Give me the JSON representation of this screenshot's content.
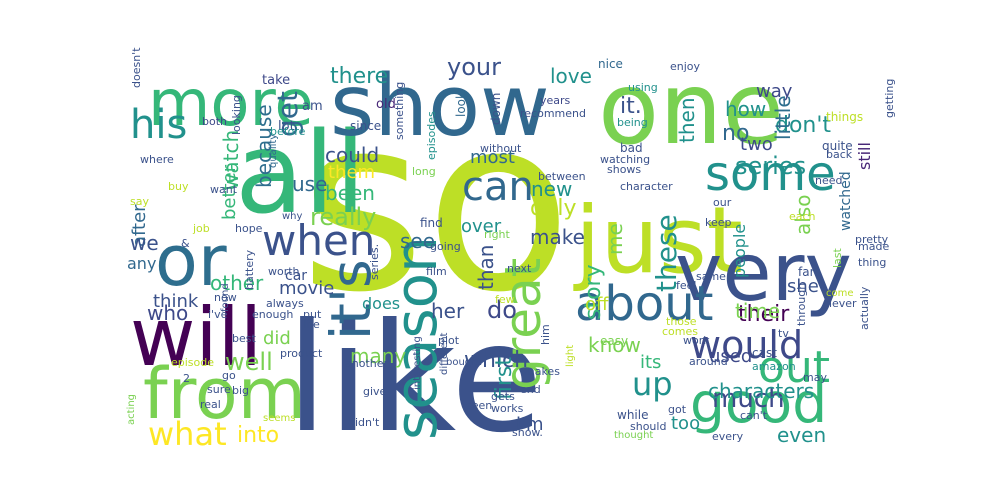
{
  "words": [
    {
      "text": "so",
      "color": "#bddf26"
    },
    {
      "text": "like",
      "color": "#3b528b"
    },
    {
      "text": "one",
      "color": "#7ad151"
    },
    {
      "text": "all",
      "color": "#35b779"
    },
    {
      "text": "just",
      "color": "#bddf26"
    },
    {
      "text": "show",
      "color": "#31688e"
    },
    {
      "text": "very",
      "color": "#3b528b"
    },
    {
      "text": "will",
      "color": "#440154"
    },
    {
      "text": "from",
      "color": "#7ad151"
    },
    {
      "text": "more",
      "color": "#35b779"
    },
    {
      "text": "or",
      "color": "#2e6e8e"
    },
    {
      "text": "season",
      "color": "#21918c"
    },
    {
      "text": "good",
      "color": "#35b779"
    },
    {
      "text": "it's",
      "color": "#31688e"
    },
    {
      "text": "about",
      "color": "#31688e"
    },
    {
      "text": "great",
      "color": "#7ad151"
    },
    {
      "text": "some",
      "color": "#21918c"
    },
    {
      "text": "out",
      "color": "#35b779"
    },
    {
      "text": "when",
      "color": "#3b528b"
    },
    {
      "text": "would",
      "color": "#3e4989"
    },
    {
      "text": "his",
      "color": "#21918c"
    },
    {
      "text": "can",
      "color": "#31688e"
    },
    {
      "text": "what",
      "color": "#fde725"
    },
    {
      "text": "up",
      "color": "#21918c"
    },
    {
      "text": "these",
      "color": "#21918c"
    },
    {
      "text": "there",
      "color": "#21918c"
    },
    {
      "text": "your",
      "color": "#3b528b"
    },
    {
      "text": "well",
      "color": "#7ad151"
    },
    {
      "text": "much",
      "color": "#3e4989"
    },
    {
      "text": "series",
      "color": "#21918c"
    },
    {
      "text": "really",
      "color": "#7ad151"
    },
    {
      "text": "love",
      "color": "#21918c"
    },
    {
      "text": "don't",
      "color": "#21918c"
    },
    {
      "text": "which",
      "color": "#3b528b"
    },
    {
      "text": "only",
      "color": "#bddf26"
    },
    {
      "text": "first",
      "color": "#21918c"
    },
    {
      "text": "story",
      "color": "#35b779"
    },
    {
      "text": "their",
      "color": "#440154"
    },
    {
      "text": "into",
      "color": "#fde725"
    },
    {
      "text": "even",
      "color": "#21918c"
    },
    {
      "text": "because",
      "color": "#2e6e8e"
    },
    {
      "text": "get",
      "color": "#31688e"
    },
    {
      "text": "it.",
      "color": "#3b528b"
    },
    {
      "text": "how",
      "color": "#21918c"
    },
    {
      "text": "no",
      "color": "#31688e"
    },
    {
      "text": "way",
      "color": "#3e4989"
    },
    {
      "text": "little",
      "color": "#2e6e8e"
    },
    {
      "text": "time",
      "color": "#7ad151"
    },
    {
      "text": "then",
      "color": "#21918c"
    },
    {
      "text": "two",
      "color": "#3e4989"
    },
    {
      "text": "also",
      "color": "#7ad151"
    },
    {
      "text": "watch",
      "color": "#35b779"
    },
    {
      "text": "use",
      "color": "#31688e"
    },
    {
      "text": "them",
      "color": "#fde725"
    },
    {
      "text": "could",
      "color": "#3b528b"
    },
    {
      "text": "been",
      "color": "#35b779"
    },
    {
      "text": "most",
      "color": "#31688e"
    },
    {
      "text": "new",
      "color": "#21918c"
    },
    {
      "text": "make",
      "color": "#3b528b"
    },
    {
      "text": "see",
      "color": "#31688e"
    },
    {
      "text": "than",
      "color": "#3b528b"
    },
    {
      "text": "over",
      "color": "#21918c"
    },
    {
      "text": "me",
      "color": "#7ad151"
    },
    {
      "text": "her",
      "color": "#3b528b"
    },
    {
      "text": "do",
      "color": "#3e4989"
    },
    {
      "text": "know",
      "color": "#7ad151"
    },
    {
      "text": "off",
      "color": "#bddf26"
    },
    {
      "text": "its",
      "color": "#35b779"
    },
    {
      "text": "too",
      "color": "#21918c"
    },
    {
      "text": "i'm",
      "color": "#3b528b"
    },
    {
      "text": "used",
      "color": "#3e4989"
    },
    {
      "text": "characters",
      "color": "#21918c"
    },
    {
      "text": "she",
      "color": "#3b528b"
    },
    {
      "text": "after",
      "color": "#31688e"
    },
    {
      "text": "better",
      "color": "#35b779"
    },
    {
      "text": "other",
      "color": "#35b779"
    },
    {
      "text": "who",
      "color": "#3e4989"
    },
    {
      "text": "we",
      "color": "#3b528b"
    },
    {
      "text": "any",
      "color": "#31688e"
    },
    {
      "text": "think",
      "color": "#3b528b"
    },
    {
      "text": "movie",
      "color": "#3b528b"
    },
    {
      "text": "many",
      "color": "#7ad151"
    },
    {
      "text": "did",
      "color": "#7ad151"
    },
    {
      "text": "does",
      "color": "#21918c"
    },
    {
      "text": "people",
      "color": "#21918c"
    },
    {
      "text": "still",
      "color": "#482878"
    },
    {
      "text": "watched",
      "color": "#31688e"
    },
    {
      "text": "doesn't",
      "color": "#3b528b"
    },
    {
      "text": "both",
      "color": "#3e4989"
    },
    {
      "text": "looking",
      "color": "#3b528b"
    },
    {
      "text": "take",
      "color": "#3e4989"
    },
    {
      "text": "lot",
      "color": "#3b528b"
    },
    {
      "text": "am",
      "color": "#3b528b"
    },
    {
      "text": "old",
      "color": "#482878"
    },
    {
      "text": "since",
      "color": "#3b528b"
    },
    {
      "text": "years",
      "color": "#3e4989"
    },
    {
      "text": "nice",
      "color": "#31688e"
    },
    {
      "text": "enjoy",
      "color": "#3b528b"
    },
    {
      "text": "getting",
      "color": "#3b528b"
    },
    {
      "text": "recommend",
      "color": "#3b528b"
    },
    {
      "text": "using",
      "color": "#21918c"
    },
    {
      "text": "things",
      "color": "#bddf26"
    },
    {
      "text": "being",
      "color": "#21918c"
    },
    {
      "text": "something",
      "color": "#3b528b"
    },
    {
      "text": "episodes",
      "color": "#21918c"
    },
    {
      "text": "look",
      "color": "#31688e"
    },
    {
      "text": "down",
      "color": "#3b528b"
    },
    {
      "text": "quite",
      "color": "#3b528b"
    },
    {
      "text": "back",
      "color": "#3b528b"
    },
    {
      "text": "need",
      "color": "#3b528b"
    },
    {
      "text": "bad",
      "color": "#3b528b"
    },
    {
      "text": "watching",
      "color": "#3b528b"
    },
    {
      "text": "shows",
      "color": "#3b528b"
    },
    {
      "text": "character",
      "color": "#3b528b"
    },
    {
      "text": "quality",
      "color": "#31688e"
    },
    {
      "text": "before",
      "color": "#21918c"
    },
    {
      "text": "where",
      "color": "#3b528b"
    },
    {
      "text": "buy",
      "color": "#bddf26"
    },
    {
      "text": "want",
      "color": "#3b528b"
    },
    {
      "text": "say",
      "color": "#bddf26"
    },
    {
      "text": "why",
      "color": "#3b528b"
    },
    {
      "text": "hope",
      "color": "#3b528b"
    },
    {
      "text": "job",
      "color": "#bddf26"
    },
    {
      "text": "battery",
      "color": "#3b528b"
    },
    {
      "text": "long",
      "color": "#7ad151"
    },
    {
      "text": "without",
      "color": "#3b528b"
    },
    {
      "text": "between",
      "color": "#3b528b"
    },
    {
      "text": "find",
      "color": "#3b528b"
    },
    {
      "text": "going",
      "color": "#3b528b"
    },
    {
      "text": "right",
      "color": "#7ad151"
    },
    {
      "text": "next",
      "color": "#3b528b"
    },
    {
      "text": "film",
      "color": "#3b528b"
    },
    {
      "text": "our",
      "color": "#3b528b"
    },
    {
      "text": "keep",
      "color": "#3b528b"
    },
    {
      "text": "each",
      "color": "#bddf26"
    },
    {
      "text": "pretty",
      "color": "#3b528b"
    },
    {
      "text": "made",
      "color": "#3b528b"
    },
    {
      "text": "thing",
      "color": "#3b528b"
    },
    {
      "text": "last",
      "color": "#7ad151"
    },
    {
      "text": "far",
      "color": "#3b528b"
    },
    {
      "text": "come",
      "color": "#bddf26"
    },
    {
      "text": "never",
      "color": "#3b528b"
    },
    {
      "text": "actually",
      "color": "#3b528b"
    },
    {
      "text": "through",
      "color": "#3b528b"
    },
    {
      "text": "same",
      "color": "#3b528b"
    },
    {
      "text": "feel",
      "color": "#3b528b"
    },
    {
      "text": "few",
      "color": "#bddf26"
    },
    {
      "text": "worth",
      "color": "#3b528b"
    },
    {
      "text": "car",
      "color": "#3b528b"
    },
    {
      "text": "series.",
      "color": "#3b528b"
    },
    {
      "text": "found",
      "color": "#3b528b"
    },
    {
      "text": "now",
      "color": "#3b528b"
    },
    {
      "text": "always",
      "color": "#3b528b"
    },
    {
      "text": "i've",
      "color": "#3b528b"
    },
    {
      "text": "enough",
      "color": "#3b528b"
    },
    {
      "text": "put",
      "color": "#3b528b"
    },
    {
      "text": "life",
      "color": "#3b528b"
    },
    {
      "text": "interesting",
      "color": "#3b528b"
    },
    {
      "text": "different",
      "color": "#3b528b"
    },
    {
      "text": "plot",
      "color": "#3b528b"
    },
    {
      "text": "bought",
      "color": "#3b528b"
    },
    {
      "text": "him",
      "color": "#3b528b"
    },
    {
      "text": "light",
      "color": "#bddf26"
    },
    {
      "text": "those",
      "color": "#bddf26"
    },
    {
      "text": "comes",
      "color": "#bddf26"
    },
    {
      "text": "tv",
      "color": "#3b528b"
    },
    {
      "text": "cast",
      "color": "#3b528b"
    },
    {
      "text": "amazon",
      "color": "#21918c"
    },
    {
      "text": "work",
      "color": "#3b528b"
    },
    {
      "text": "around",
      "color": "#3b528b"
    },
    {
      "text": "may",
      "color": "#3b528b"
    },
    {
      "text": "easy",
      "color": "#7ad151"
    },
    {
      "text": "best",
      "color": "#3b528b"
    },
    {
      "text": "product",
      "color": "#3b528b"
    },
    {
      "text": "episode",
      "color": "#bddf26"
    },
    {
      "text": "another",
      "color": "#3b528b"
    },
    {
      "text": "give",
      "color": "#3b528b"
    },
    {
      "text": "makes",
      "color": "#3b528b"
    },
    {
      "text": "end",
      "color": "#3b528b"
    },
    {
      "text": "gets",
      "color": "#3b528b"
    },
    {
      "text": "seen",
      "color": "#3b528b"
    },
    {
      "text": "works",
      "color": "#3b528b"
    },
    {
      "text": "while",
      "color": "#3b528b"
    },
    {
      "text": "should",
      "color": "#3b528b"
    },
    {
      "text": "got",
      "color": "#3b528b"
    },
    {
      "text": "can't",
      "color": "#3b528b"
    },
    {
      "text": "every",
      "color": "#3b528b"
    },
    {
      "text": "thought",
      "color": "#7ad151"
    },
    {
      "text": "show.",
      "color": "#3b528b"
    },
    {
      "text": "didn't",
      "color": "#3b528b"
    },
    {
      "text": "seems",
      "color": "#bddf26"
    },
    {
      "text": "real",
      "color": "#3b528b"
    },
    {
      "text": "sure",
      "color": "#3b528b"
    },
    {
      "text": "big",
      "color": "#3b528b"
    },
    {
      "text": "go",
      "color": "#3b528b"
    },
    {
      "text": "acting",
      "color": "#7ad151"
    },
    {
      "text": "2",
      "color": "#3b528b"
    },
    {
      "text": "&",
      "color": "#3b528b"
    }
  ]
}
